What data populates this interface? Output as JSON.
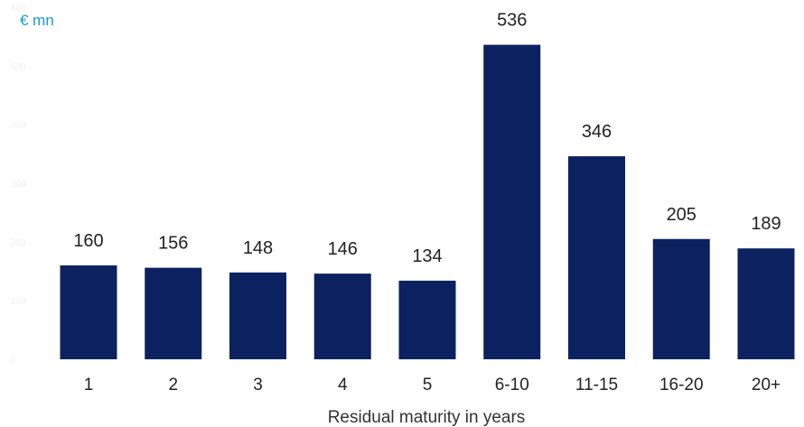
{
  "chart_data": {
    "type": "bar",
    "unit_label": "€ mn",
    "categories": [
      "1",
      "2",
      "3",
      "4",
      "5",
      "6-10",
      "11-15",
      "16-20",
      "20+"
    ],
    "values": [
      160,
      156,
      148,
      146,
      134,
      536,
      346,
      205,
      189
    ],
    "value_labels": [
      "160",
      "156",
      "148",
      "146",
      "134",
      "536",
      "346",
      "205",
      "189"
    ],
    "xlabel": "Residual maturity in years",
    "ylabel": "",
    "ylim": [
      0,
      600
    ],
    "yticks": [
      "0",
      "100",
      "200",
      "300",
      "400",
      "500",
      "600"
    ],
    "grid": false,
    "colors": {
      "bar": "#0c2260",
      "unit": "#1a9ad6",
      "tick": "#eeeeee",
      "text": "#222222"
    }
  }
}
